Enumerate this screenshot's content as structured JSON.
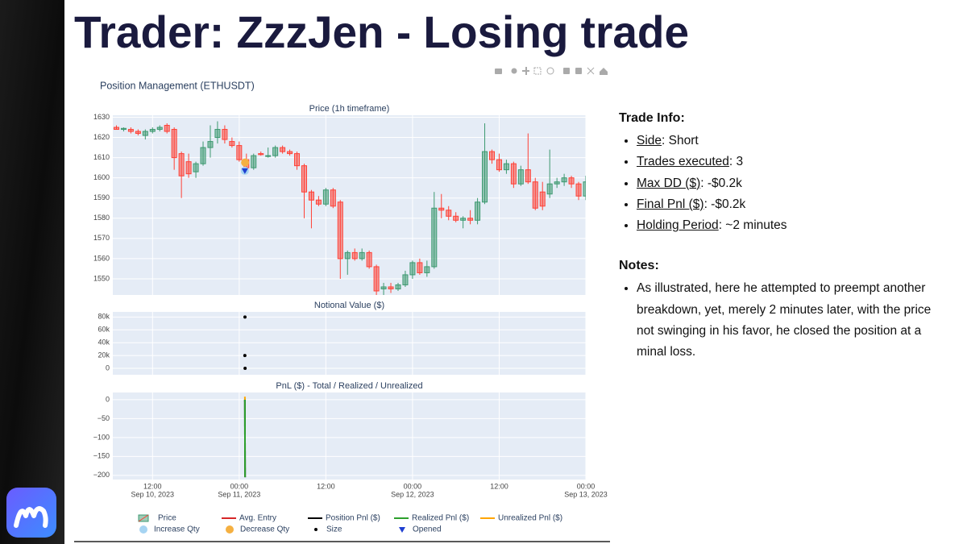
{
  "header": {
    "title": "Trader: ZzzJen - Losing trade"
  },
  "figure_title": "Position Management (ETHUSDT)",
  "x_axis": {
    "xlim": [
      "2023-09-10 06:30",
      "2023-09-13 00:00"
    ],
    "xticks": [
      {
        "value": "2023-09-10 12:00",
        "label": [
          "12:00",
          "Sep 10, 2023"
        ]
      },
      {
        "value": "2023-09-11 00:00",
        "label": [
          "00:00",
          "Sep 11, 2023"
        ]
      },
      {
        "value": "2023-09-11 12:00",
        "label": [
          "12:00"
        ]
      },
      {
        "value": "2023-09-12 00:00",
        "label": [
          "00:00",
          "Sep 12, 2023"
        ]
      },
      {
        "value": "2023-09-12 12:00",
        "label": [
          "12:00"
        ]
      },
      {
        "value": "2023-09-13 00:00",
        "label": [
          "00:00",
          "Sep 13, 2023"
        ]
      }
    ]
  },
  "chart_data": [
    {
      "type": "candlestick",
      "title": "Price (1h timeframe)",
      "name": "Price",
      "increasing_color": "#3d9970",
      "decreasing_color": "#ff4136",
      "x": [
        "2023-09-10 07:00",
        "2023-09-10 08:00",
        "2023-09-10 09:00",
        "2023-09-10 10:00",
        "2023-09-10 11:00",
        "2023-09-10 12:00",
        "2023-09-10 13:00",
        "2023-09-10 14:00",
        "2023-09-10 15:00",
        "2023-09-10 16:00",
        "2023-09-10 17:00",
        "2023-09-10 18:00",
        "2023-09-10 19:00",
        "2023-09-10 20:00",
        "2023-09-10 21:00",
        "2023-09-10 22:00",
        "2023-09-10 23:00",
        "2023-09-11 00:00",
        "2023-09-11 01:00",
        "2023-09-11 02:00",
        "2023-09-11 03:00",
        "2023-09-11 04:00",
        "2023-09-11 05:00",
        "2023-09-11 06:00",
        "2023-09-11 07:00",
        "2023-09-11 08:00",
        "2023-09-11 09:00",
        "2023-09-11 10:00",
        "2023-09-11 11:00",
        "2023-09-11 12:00",
        "2023-09-11 13:00",
        "2023-09-11 14:00",
        "2023-09-11 15:00",
        "2023-09-11 16:00",
        "2023-09-11 17:00",
        "2023-09-11 18:00",
        "2023-09-11 19:00",
        "2023-09-11 20:00",
        "2023-09-11 21:00",
        "2023-09-11 22:00",
        "2023-09-11 23:00",
        "2023-09-12 00:00",
        "2023-09-12 01:00",
        "2023-09-12 02:00",
        "2023-09-12 03:00",
        "2023-09-12 04:00",
        "2023-09-12 05:00",
        "2023-09-12 06:00",
        "2023-09-12 07:00",
        "2023-09-12 08:00",
        "2023-09-12 09:00",
        "2023-09-12 10:00",
        "2023-09-12 11:00",
        "2023-09-12 12:00",
        "2023-09-12 13:00",
        "2023-09-12 14:00",
        "2023-09-12 15:00",
        "2023-09-12 16:00",
        "2023-09-12 17:00",
        "2023-09-12 18:00",
        "2023-09-12 19:00",
        "2023-09-12 20:00",
        "2023-09-12 21:00",
        "2023-09-12 22:00",
        "2023-09-12 23:00",
        "2023-09-13 00:00"
      ],
      "open": [
        1625,
        1624,
        1624,
        1623,
        1621,
        1623,
        1624,
        1626,
        1624,
        1612,
        1608,
        1603,
        1607,
        1615,
        1620,
        1624,
        1618,
        1616,
        1609,
        1605,
        1612,
        1611,
        1611,
        1615,
        1613,
        1612,
        1606,
        1593,
        1589,
        1587,
        1594,
        1588,
        1560,
        1563,
        1560,
        1563,
        1556,
        1545,
        1546,
        1545,
        1547,
        1552,
        1558,
        1553,
        1556,
        1585,
        1584,
        1581,
        1579,
        1580,
        1579,
        1588,
        1613,
        1609,
        1604,
        1607,
        1597,
        1604,
        1598,
        1593,
        1592,
        1597,
        1598,
        1600,
        1597,
        1591
      ],
      "high": [
        1626,
        1625,
        1625,
        1624,
        1624,
        1625,
        1626,
        1627,
        1625,
        1613,
        1612,
        1608,
        1618,
        1626,
        1628,
        1626,
        1620,
        1618,
        1612,
        1612,
        1613,
        1615,
        1616,
        1616,
        1614,
        1613,
        1607,
        1594,
        1591,
        1595,
        1595,
        1589,
        1564,
        1565,
        1565,
        1564,
        1557,
        1548,
        1548,
        1548,
        1554,
        1559,
        1560,
        1559,
        1593,
        1592,
        1586,
        1583,
        1581,
        1584,
        1590,
        1627,
        1614,
        1612,
        1609,
        1608,
        1606,
        1622,
        1600,
        1598,
        1614,
        1600,
        1602,
        1601,
        1598,
        1601
      ],
      "low": [
        1624,
        1623,
        1622,
        1621,
        1619,
        1622,
        1623,
        1622,
        1604,
        1590,
        1600,
        1600,
        1606,
        1610,
        1617,
        1617,
        1615,
        1608,
        1603,
        1604,
        1611,
        1610,
        1610,
        1612,
        1611,
        1604,
        1580,
        1575,
        1586,
        1586,
        1585,
        1550,
        1552,
        1559,
        1559,
        1555,
        1542,
        1542,
        1543,
        1544,
        1546,
        1550,
        1552,
        1551,
        1555,
        1580,
        1579,
        1578,
        1575,
        1577,
        1577,
        1587,
        1607,
        1603,
        1602,
        1595,
        1596,
        1597,
        1584,
        1584,
        1590,
        1595,
        1596,
        1595,
        1589,
        1589
      ],
      "close": [
        1624,
        1624.5,
        1623,
        1622,
        1623,
        1624,
        1625,
        1623,
        1610,
        1601,
        1602,
        1607,
        1615,
        1618,
        1624,
        1619,
        1616,
        1609,
        1605,
        1611,
        1611.5,
        1611,
        1615,
        1613,
        1612,
        1606,
        1593,
        1589,
        1587,
        1594,
        1586,
        1560,
        1563,
        1560,
        1563,
        1556,
        1544,
        1546,
        1545,
        1547,
        1552,
        1558,
        1553,
        1556,
        1585,
        1584,
        1581,
        1579,
        1580,
        1579,
        1588,
        1613,
        1609,
        1604,
        1607,
        1597,
        1604,
        1598,
        1585,
        1586,
        1597,
        1598,
        1600,
        1597,
        1591,
        1598
      ],
      "series": [
        {
          "name": "Avg. Entry",
          "color": "#d62728",
          "mode": "lines",
          "x": [
            "2023-09-11 00:47",
            "2023-09-11 00:49"
          ],
          "values": [
            1603.5,
            1603.5
          ]
        },
        {
          "name": "Increase Qty",
          "color": "#a6d4f2",
          "mode": "markers",
          "symbol": "circle",
          "x": [
            "2023-09-11 00:47"
          ],
          "values": [
            1603.5
          ]
        },
        {
          "name": "Decrease Qty",
          "color": "#f5b041",
          "mode": "markers",
          "symbol": "circle",
          "x": [
            "2023-09-11 00:49"
          ],
          "values": [
            1607.6
          ]
        },
        {
          "name": "Opened",
          "color": "#1f3fd1",
          "mode": "markers",
          "symbol": "triangle-down",
          "x": [
            "2023-09-11 00:47"
          ],
          "values": [
            1603.5
          ]
        }
      ],
      "ylim": [
        1542,
        1631
      ],
      "yticks": [
        1550,
        1560,
        1570,
        1580,
        1590,
        1600,
        1610,
        1620,
        1630
      ],
      "grid": true
    },
    {
      "type": "scatter",
      "title": "Notional Value ($)",
      "series": [
        {
          "name": "Size",
          "color": "#000000",
          "mode": "markers",
          "symbol": "circle",
          "x": [
            "2023-09-11 00:47",
            "2023-09-11 00:48",
            "2023-09-11 00:49"
          ],
          "values": [
            20000,
            80000,
            0
          ]
        }
      ],
      "ylim": [
        -10000,
        88000
      ],
      "yticks": [
        0,
        {
          "value": 20000,
          "label": "20k"
        },
        {
          "value": 40000,
          "label": "40k"
        },
        {
          "value": 60000,
          "label": "60k"
        },
        {
          "value": 80000,
          "label": "80k"
        }
      ],
      "grid": true
    },
    {
      "type": "line",
      "title": "PnL ($) - Total / Realized / Unrealized",
      "series": [
        {
          "name": "Position Pnl ($)",
          "color": "#000000",
          "mode": "lines",
          "x": [
            "2023-09-11 00:47",
            "2023-09-11 00:49"
          ],
          "values": [
            0,
            -205
          ]
        },
        {
          "name": "Realized Pnl ($)",
          "color": "#2ca02c",
          "mode": "lines",
          "x": [
            "2023-09-11 00:47",
            "2023-09-11 00:49"
          ],
          "values": [
            0,
            -205
          ]
        },
        {
          "name": "Unrealized Pnl ($)",
          "color": "#ffa500",
          "mode": "lines",
          "x": [
            "2023-09-11 00:47",
            "2023-09-11 00:48"
          ],
          "values": [
            8,
            0
          ]
        }
      ],
      "ylim": [
        -211,
        19
      ],
      "yticks": [
        {
          "value": -200,
          "label": "−200"
        },
        {
          "value": -150,
          "label": "−150"
        },
        {
          "value": -100,
          "label": "−100"
        },
        {
          "value": -50,
          "label": "−50"
        },
        0
      ],
      "grid": true
    }
  ],
  "trade_info": {
    "heading": "Trade Info:",
    "items": [
      {
        "label": "Side",
        "text": ": Short"
      },
      {
        "label": "Trades executed",
        "text": ": 3"
      },
      {
        "label": "Max DD ($)",
        "text": ": -$0.2k"
      },
      {
        "label": "Final Pnl ($)",
        "text": ": -$0.2k"
      },
      {
        "label": "Holding Period",
        "text": ": ~2 minutes"
      }
    ]
  },
  "notes": {
    "heading": "Notes:",
    "items": [
      "As illustrated, here he attempted to preempt another breakdown, yet, merely 2 minutes later, with the price not swinging in his favor, he closed the position at a minal loss."
    ]
  }
}
